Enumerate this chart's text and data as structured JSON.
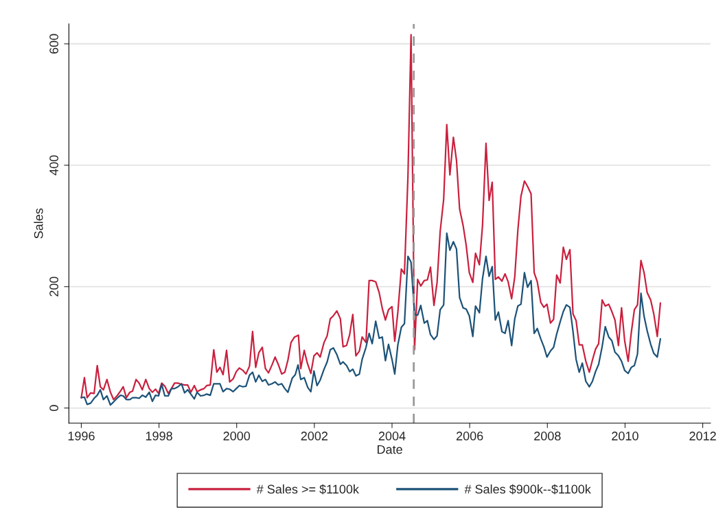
{
  "chart_data": {
    "type": "line",
    "xlabel": "Date",
    "ylabel": "Sales",
    "xlim": [
      1995.68,
      2012.2
    ],
    "xticks": [
      1996,
      1998,
      2000,
      2002,
      2004,
      2006,
      2008,
      2010,
      2012
    ],
    "ylim": [
      -25,
      633
    ],
    "yticks": [
      0,
      200,
      400,
      600
    ],
    "grid": "y",
    "legend": "bottom",
    "ref_lines": [
      {
        "axis": "x",
        "value": 2004.56,
        "color": "#999999",
        "line_style": "dashed"
      }
    ],
    "series": [
      {
        "name": "# Sales >= $1100k",
        "color": "#c9203e",
        "x": [
          1996.0,
          1996.08,
          1996.15,
          1996.24,
          1996.33,
          1996.41,
          1996.49,
          1996.57,
          1996.66,
          1996.75,
          1996.83,
          1996.92,
          1997.01,
          1997.08,
          1997.16,
          1997.25,
          1997.32,
          1997.41,
          1997.49,
          1997.57,
          1997.66,
          1997.75,
          1997.83,
          1997.91,
          1997.99,
          1998.07,
          1998.15,
          1998.24,
          1998.32,
          1998.4,
          1998.49,
          1998.58,
          1998.66,
          1998.74,
          1998.82,
          1998.91,
          1998.98,
          1999.07,
          1999.16,
          1999.23,
          1999.32,
          1999.41,
          1999.49,
          1999.57,
          1999.65,
          1999.74,
          1999.82,
          1999.91,
          1999.99,
          2000.07,
          2000.16,
          2000.24,
          2000.33,
          2000.41,
          2000.49,
          2000.57,
          2000.66,
          2000.74,
          2000.82,
          2000.91,
          2000.99,
          2001.07,
          2001.16,
          2001.24,
          2001.32,
          2001.4,
          2001.49,
          2001.59,
          2001.65,
          2001.74,
          2001.82,
          2001.91,
          2001.99,
          2002.07,
          2002.15,
          2002.25,
          2002.33,
          2002.41,
          2002.49,
          2002.58,
          2002.67,
          2002.74,
          2002.83,
          2002.91,
          2002.99,
          2003.07,
          2003.16,
          2003.23,
          2003.33,
          2003.41,
          2003.49,
          2003.58,
          2003.67,
          2003.75,
          2003.83,
          2003.91,
          2004.0,
          2004.07,
          2004.15,
          2004.24,
          2004.32,
          2004.41,
          2004.49,
          2004.58,
          2004.66,
          2004.74,
          2004.83,
          2004.91,
          2004.99,
          2005.08,
          2005.16,
          2005.24,
          2005.33,
          2005.41,
          2005.49,
          2005.58,
          2005.66,
          2005.74,
          2005.83,
          2005.91,
          2005.99,
          2006.08,
          2006.15,
          2006.25,
          2006.33,
          2006.42,
          2006.5,
          2006.58,
          2006.66,
          2006.74,
          2006.83,
          2006.91,
          2006.99,
          2007.08,
          2007.16,
          2007.24,
          2007.32,
          2007.41,
          2007.49,
          2007.58,
          2007.66,
          2007.74,
          2007.83,
          2007.91,
          2007.99,
          2008.08,
          2008.16,
          2008.24,
          2008.33,
          2008.41,
          2008.49,
          2008.58,
          2008.66,
          2008.74,
          2008.82,
          2008.9,
          2008.99,
          2009.08,
          2009.16,
          2009.24,
          2009.32,
          2009.41,
          2009.49,
          2009.58,
          2009.66,
          2009.74,
          2009.83,
          2009.91,
          2009.99,
          2010.08,
          2010.16,
          2010.24,
          2010.32,
          2010.41,
          2010.49,
          2010.57,
          2010.66,
          2010.74,
          2010.83,
          2010.91
        ],
        "values": [
          17,
          50,
          17,
          25,
          24,
          70,
          35,
          30,
          47,
          26,
          14,
          20,
          28,
          35,
          17,
          26,
          28,
          47,
          41,
          30,
          47,
          32,
          26,
          31,
          24,
          41,
          36,
          24,
          32,
          41,
          41,
          39,
          38,
          38,
          26,
          37,
          27,
          30,
          32,
          37,
          38,
          96,
          59,
          67,
          55,
          95,
          43,
          48,
          60,
          66,
          62,
          56,
          69,
          126,
          67,
          91,
          100,
          65,
          58,
          71,
          84,
          72,
          56,
          59,
          79,
          108,
          117,
          120,
          65,
          95,
          74,
          57,
          86,
          91,
          84,
          108,
          119,
          147,
          152,
          160,
          147,
          101,
          103,
          121,
          154,
          86,
          94,
          117,
          108,
          210,
          210,
          208,
          190,
          164,
          145,
          162,
          167,
          110,
          158,
          229,
          221,
          381,
          615,
          96,
          212,
          201,
          210,
          211,
          232,
          169,
          207,
          291,
          344,
          467,
          384,
          446,
          408,
          328,
          301,
          268,
          223,
          207,
          255,
          236,
          301,
          436,
          342,
          372,
          212,
          216,
          209,
          221,
          208,
          180,
          216,
          293,
          349,
          374,
          365,
          353,
          223,
          208,
          174,
          166,
          171,
          140,
          146,
          219,
          206,
          265,
          245,
          261,
          155,
          144,
          104,
          104,
          77,
          59,
          79,
          97,
          106,
          178,
          168,
          171,
          159,
          145,
          103,
          165,
          111,
          77,
          124,
          162,
          170,
          243,
          223,
          190,
          178,
          155,
          118,
          173
        ]
      },
      {
        "name": "# Sales $900k--$1100k",
        "color": "#1c5278",
        "x": [
          1996.0,
          1996.08,
          1996.15,
          1996.24,
          1996.33,
          1996.41,
          1996.49,
          1996.57,
          1996.66,
          1996.75,
          1996.83,
          1996.92,
          1997.01,
          1997.08,
          1997.16,
          1997.25,
          1997.32,
          1997.41,
          1997.49,
          1997.57,
          1997.66,
          1997.75,
          1997.83,
          1997.91,
          1997.99,
          1998.07,
          1998.15,
          1998.24,
          1998.32,
          1998.4,
          1998.49,
          1998.58,
          1998.66,
          1998.74,
          1998.82,
          1998.91,
          1998.98,
          1999.07,
          1999.16,
          1999.23,
          1999.32,
          1999.41,
          1999.49,
          1999.57,
          1999.65,
          1999.74,
          1999.82,
          1999.91,
          1999.99,
          2000.07,
          2000.16,
          2000.24,
          2000.33,
          2000.41,
          2000.49,
          2000.57,
          2000.66,
          2000.74,
          2000.82,
          2000.91,
          2000.99,
          2001.07,
          2001.16,
          2001.24,
          2001.32,
          2001.43,
          2001.51,
          2001.58,
          2001.65,
          2001.74,
          2001.83,
          2001.91,
          2001.99,
          2002.07,
          2002.15,
          2002.25,
          2002.33,
          2002.41,
          2002.49,
          2002.58,
          2002.67,
          2002.74,
          2002.83,
          2002.91,
          2002.99,
          2003.07,
          2003.16,
          2003.23,
          2003.33,
          2003.41,
          2003.49,
          2003.58,
          2003.67,
          2003.75,
          2003.83,
          2003.91,
          2004.0,
          2004.07,
          2004.15,
          2004.24,
          2004.32,
          2004.41,
          2004.49,
          2004.58,
          2004.66,
          2004.74,
          2004.83,
          2004.91,
          2004.99,
          2005.08,
          2005.16,
          2005.24,
          2005.33,
          2005.41,
          2005.49,
          2005.58,
          2005.66,
          2005.74,
          2005.83,
          2005.91,
          2005.99,
          2006.08,
          2006.15,
          2006.25,
          2006.33,
          2006.42,
          2006.5,
          2006.58,
          2006.66,
          2006.74,
          2006.83,
          2006.91,
          2006.99,
          2007.08,
          2007.16,
          2007.24,
          2007.32,
          2007.41,
          2007.49,
          2007.58,
          2007.66,
          2007.74,
          2007.83,
          2007.91,
          2007.99,
          2008.08,
          2008.16,
          2008.24,
          2008.33,
          2008.41,
          2008.49,
          2008.58,
          2008.66,
          2008.74,
          2008.82,
          2008.9,
          2008.99,
          2009.08,
          2009.16,
          2009.24,
          2009.32,
          2009.41,
          2009.49,
          2009.58,
          2009.66,
          2009.74,
          2009.83,
          2009.91,
          2009.99,
          2010.08,
          2010.16,
          2010.24,
          2010.32,
          2010.41,
          2010.49,
          2010.57,
          2010.66,
          2010.74,
          2010.83,
          2010.91
        ],
        "values": [
          17,
          18,
          6,
          8,
          16,
          21,
          30,
          14,
          20,
          5,
          10,
          16,
          21,
          20,
          14,
          14,
          17,
          17,
          16,
          21,
          18,
          26,
          11,
          21,
          20,
          39,
          20,
          20,
          32,
          32,
          35,
          40,
          25,
          30,
          23,
          15,
          26,
          20,
          21,
          23,
          21,
          40,
          40,
          40,
          27,
          32,
          31,
          27,
          32,
          37,
          35,
          36,
          54,
          59,
          43,
          54,
          44,
          47,
          38,
          40,
          43,
          38,
          40,
          32,
          26,
          49,
          55,
          71,
          47,
          50,
          34,
          27,
          61,
          37,
          46,
          64,
          76,
          96,
          99,
          88,
          72,
          76,
          70,
          60,
          64,
          53,
          56,
          80,
          100,
          123,
          106,
          143,
          115,
          117,
          78,
          105,
          80,
          56,
          104,
          133,
          139,
          250,
          240,
          154,
          153,
          169,
          140,
          144,
          121,
          113,
          119,
          162,
          170,
          288,
          260,
          274,
          262,
          182,
          165,
          163,
          152,
          118,
          168,
          157,
          213,
          250,
          217,
          233,
          145,
          158,
          126,
          123,
          144,
          103,
          147,
          168,
          171,
          223,
          199,
          210,
          123,
          131,
          114,
          101,
          84,
          94,
          100,
          122,
          142,
          159,
          170,
          166,
          126,
          80,
          59,
          74,
          44,
          35,
          44,
          60,
          72,
          101,
          134,
          117,
          111,
          92,
          86,
          77,
          62,
          57,
          67,
          70,
          89,
          189,
          151,
          127,
          105,
          90,
          84,
          114
        ]
      }
    ]
  }
}
